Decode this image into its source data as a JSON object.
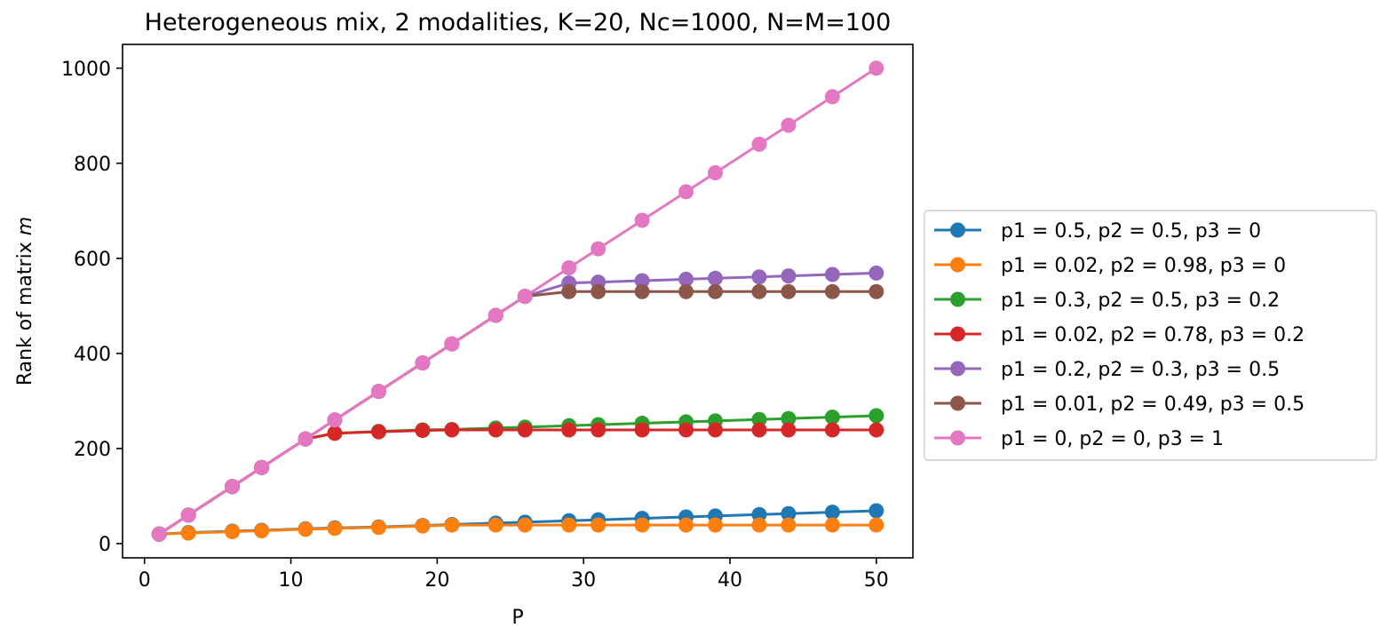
{
  "chart_data": {
    "type": "line",
    "title": "Heterogeneous mix, 2 modalities, K=20, Nc=1000, N=M=100",
    "xlabel": "P",
    "ylabel": "Rank of matrix m",
    "ylabel_plain": "Rank of matrix ",
    "ylabel_italic": "m",
    "xlim": [
      -1.5,
      52.5
    ],
    "ylim": [
      -30,
      1050
    ],
    "xticks": [
      0,
      10,
      20,
      30,
      40,
      50
    ],
    "yticks": [
      0,
      200,
      400,
      600,
      800,
      1000
    ],
    "grid": false,
    "legend_position": "outside-right",
    "x": [
      1,
      3,
      6,
      8,
      11,
      13,
      16,
      19,
      21,
      24,
      26,
      29,
      31,
      34,
      37,
      39,
      42,
      44,
      47,
      50
    ],
    "series": [
      {
        "name": "p1 = 0.5, p2 = 0.5, p3 = 0",
        "color": "#1f77b4",
        "values": [
          20,
          23,
          26,
          28,
          31,
          33,
          35,
          38,
          40,
          43,
          45,
          48,
          50,
          53,
          56,
          58,
          61,
          63,
          66,
          69
        ]
      },
      {
        "name": "p1 = 0.02, p2 = 0.98, p3 = 0",
        "color": "#ff7f0e",
        "values": [
          20,
          22,
          25,
          27,
          30,
          32,
          34,
          37,
          39,
          39,
          39,
          39,
          39,
          39,
          39,
          39,
          39,
          39,
          39,
          39
        ]
      },
      {
        "name": "p1 = 0.3, p2 = 0.5, p3 = 0.2",
        "color": "#2ca02c",
        "values": [
          20,
          60,
          120,
          160,
          220,
          232,
          236,
          239,
          240,
          243,
          245,
          248,
          250,
          253,
          256,
          258,
          261,
          263,
          266,
          269
        ]
      },
      {
        "name": "p1 = 0.02, p2 = 0.78, p3 = 0.2",
        "color": "#d62728",
        "values": [
          20,
          60,
          120,
          160,
          220,
          232,
          235,
          238,
          239,
          239,
          239,
          239,
          239,
          239,
          239,
          239,
          239,
          239,
          239,
          239
        ]
      },
      {
        "name": "p1 = 0.2, p2 = 0.3, p3 = 0.5",
        "color": "#9467bd",
        "values": [
          20,
          60,
          120,
          160,
          220,
          260,
          320,
          380,
          420,
          480,
          520,
          548,
          550,
          553,
          556,
          558,
          561,
          563,
          566,
          569
        ]
      },
      {
        "name": "p1 = 0.01, p2 = 0.49, p3 = 0.5",
        "color": "#8c564b",
        "values": [
          20,
          60,
          120,
          160,
          220,
          260,
          320,
          380,
          420,
          480,
          520,
          530,
          530,
          530,
          530,
          530,
          530,
          530,
          530,
          530
        ]
      },
      {
        "name": "p1 = 0, p2 = 0, p3 = 1",
        "color": "#e377c2",
        "values": [
          20,
          60,
          120,
          160,
          220,
          260,
          320,
          380,
          420,
          480,
          520,
          580,
          620,
          680,
          740,
          780,
          840,
          880,
          940,
          1000
        ]
      }
    ]
  }
}
